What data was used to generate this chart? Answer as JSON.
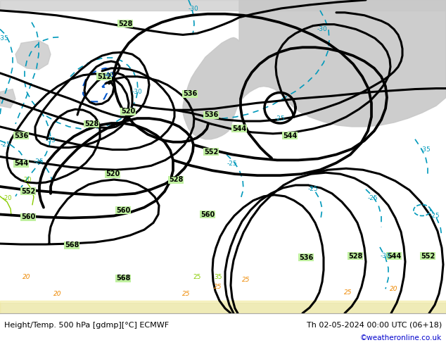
{
  "title_left": "Height/Temp. 500 hPa [gdmp][°C] ECMWF",
  "title_right": "Th 02-05-2024 00:00 UTC (06+18)",
  "copyright": "©weatheronline.co.uk",
  "map_bg": "#c0f0a0",
  "land_color": "#c8c8c8",
  "land_color2": "#d0d0d0",
  "bottom_bar_color": "#ffffff",
  "copyright_color": "#0000cc",
  "figsize": [
    6.34,
    4.9
  ],
  "dpi": 100
}
